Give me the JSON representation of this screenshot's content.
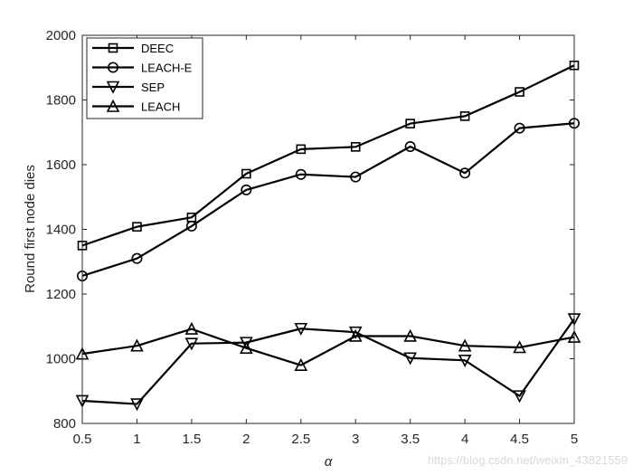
{
  "chart_data": {
    "type": "line",
    "x": [
      0.5,
      1,
      1.5,
      2,
      2.5,
      3,
      3.5,
      4,
      4.5,
      5
    ],
    "xlabel": "α",
    "ylabel": "Round first node dies",
    "xlim": [
      0.5,
      5
    ],
    "ylim": [
      800,
      2000
    ],
    "xticks": [
      "0.5",
      "1",
      "1.5",
      "2",
      "2.5",
      "3",
      "3.5",
      "4",
      "4.5",
      "5"
    ],
    "yticks": [
      "800",
      "1000",
      "1200",
      "1400",
      "1600",
      "1800",
      "2000"
    ],
    "grid": false,
    "legend_position": "top-left",
    "series": [
      {
        "name": "DEEC",
        "marker": "square",
        "color": "#000000",
        "values": [
          1350,
          1408,
          1437,
          1572,
          1648,
          1655,
          1727,
          1750,
          1825,
          1907
        ]
      },
      {
        "name": "LEACH-E",
        "marker": "circle",
        "color": "#000000",
        "values": [
          1256,
          1310,
          1410,
          1522,
          1570,
          1562,
          1656,
          1574,
          1713,
          1728
        ]
      },
      {
        "name": "SEP",
        "marker": "triangle-down",
        "color": "#000000",
        "values": [
          870,
          860,
          1047,
          1050,
          1093,
          1082,
          1002,
          995,
          885,
          1123
        ]
      },
      {
        "name": "LEACH",
        "marker": "triangle-up",
        "color": "#000000",
        "values": [
          1015,
          1040,
          1092,
          1033,
          980,
          1070,
          1070,
          1040,
          1035,
          1067
        ]
      }
    ]
  },
  "watermark": "https://blog.csdn.net/weixin_43821559"
}
